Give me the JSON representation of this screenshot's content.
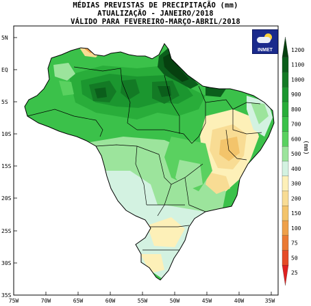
{
  "header": {
    "line1": "MÉDIAS PREVISTAS DE PRECIPITAÇÃO (mm)",
    "line2": "ATUALIZAÇÃO - JANEIRO/2018",
    "line3": "VÁLIDO PARA FEVEREIRO-MARÇO-ABRIL/2018"
  },
  "logo": {
    "text": "INMET",
    "icon": "weather-sun-cloud-icon"
  },
  "axes": {
    "lat_labels": [
      "5N",
      "EQ",
      "5S",
      "10S",
      "15S",
      "20S",
      "25S",
      "30S",
      "35S"
    ],
    "lon_labels": [
      "75W",
      "70W",
      "65W",
      "60W",
      "55W",
      "50W",
      "45W",
      "40W",
      "35W"
    ]
  },
  "colorbar": {
    "unit": "(mm)",
    "levels": [
      "1200",
      "1100",
      "1000",
      "900",
      "800",
      "700",
      "600",
      "500",
      "400",
      "300",
      "200",
      "150",
      "100",
      "75",
      "50",
      "25"
    ],
    "colors": [
      "#06400f",
      "#0b5e1b",
      "#137a25",
      "#1b962f",
      "#29ad3a",
      "#3bc14a",
      "#5ad160",
      "#9ce49c",
      "#d3f2e1",
      "#fdf0b8",
      "#f8dc94",
      "#f3c46b",
      "#eea04a",
      "#ea7a34",
      "#e54b27",
      "#df2020"
    ]
  }
}
